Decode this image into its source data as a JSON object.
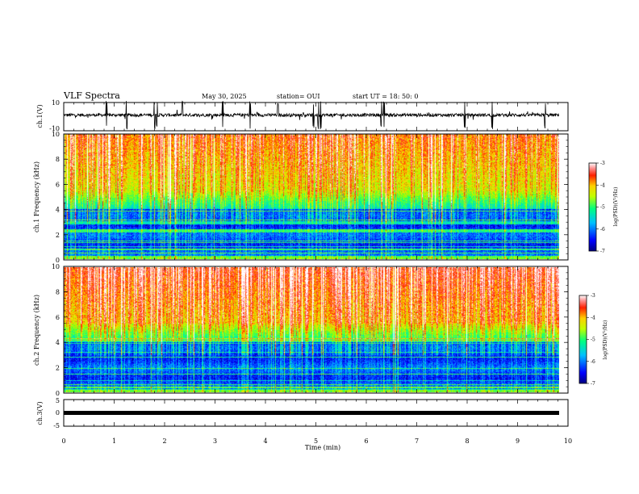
{
  "header": {
    "title": "VLF Spectra",
    "date": "May 30, 2025",
    "station": "station= OUI",
    "start": "start  UT  =   18: 50: 0"
  },
  "chart_data": [
    {
      "type": "line",
      "name": "ch1-waveform",
      "ylabel": "ch.1(V)",
      "yticks": [
        "10",
        "-10"
      ],
      "ylim": [
        -10,
        10
      ],
      "xlim": [
        0,
        10
      ],
      "baseline": 0,
      "spikes_min": [
        0.85,
        1.25,
        1.8,
        1.85,
        2.35,
        3.15,
        3.7,
        4.25,
        4.95,
        5.05,
        5.1,
        6.3,
        6.35,
        7.95,
        8.5,
        9.55
      ]
    },
    {
      "type": "heatmap",
      "name": "ch1-spectrogram",
      "ylabel": "ch.1 Frequency (kHz)",
      "yticks": [
        "0",
        "2",
        "4",
        "6",
        "8",
        "10"
      ],
      "ylim": [
        0,
        10
      ],
      "xlim": [
        0,
        9.83
      ],
      "colorbar": {
        "label": "log(PSD)(V²/Hz)",
        "ticks": [
          "-3",
          "-4",
          "-5",
          "-6",
          "-7"
        ],
        "range": [
          -7,
          -3
        ]
      }
    },
    {
      "type": "heatmap",
      "name": "ch2-spectrogram",
      "ylabel": "ch.2 Frequency (kHz)",
      "yticks": [
        "0",
        "2",
        "4",
        "6",
        "8",
        "10"
      ],
      "ylim": [
        0,
        10
      ],
      "xlim": [
        0,
        9.83
      ],
      "colorbar": {
        "label": "log(PSD)(V²/Hz)",
        "ticks": [
          "-3",
          "-4",
          "-5",
          "-6",
          "-7"
        ],
        "range": [
          -7,
          -3
        ]
      }
    },
    {
      "type": "line",
      "name": "ch3-waveform",
      "ylabel": "ch.3(V)",
      "yticks": [
        "5",
        "0",
        "-5"
      ],
      "ylim": [
        -5,
        5
      ],
      "xlim": [
        0,
        10
      ],
      "baseline": -0.3
    }
  ],
  "xaxis": {
    "label": "Time  (min)",
    "ticks": [
      "0",
      "1",
      "2",
      "3",
      "4",
      "5",
      "6",
      "7",
      "8",
      "9",
      "10"
    ]
  },
  "colors": {
    "cmap": [
      "#00007f",
      "#0000ff",
      "#00ffff",
      "#7fff7f",
      "#ffff00",
      "#ff7f00",
      "#ff0000",
      "#ffffff"
    ]
  }
}
